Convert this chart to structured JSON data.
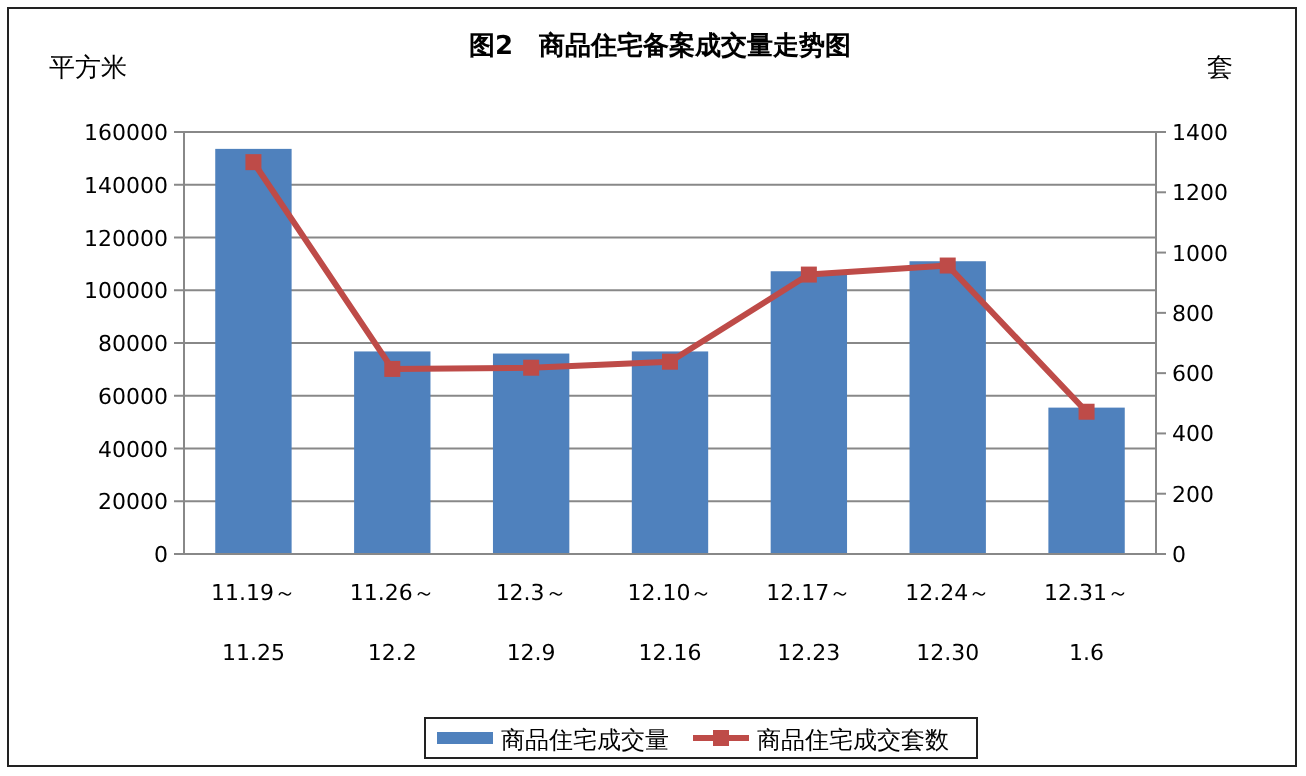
{
  "chart_data": {
    "type": "bar",
    "title": "图2　商品住宅备案成交量走势图",
    "ylabel": "平方米",
    "y2label": "套",
    "categories": [
      "11.19～\n11.25",
      "11.26～\n12.2",
      "12.3～\n12.9",
      "12.10～\n12.16",
      "12.17～\n12.23",
      "12.24～\n12.30",
      "12.31～\n1.6"
    ],
    "series": [
      {
        "name": "商品住宅成交量",
        "color": "#4f81bd",
        "values": [
          153600,
          76800,
          76000,
          76800,
          107200,
          111000,
          55500
        ]
      },
      {
        "name": "商品住宅成交套数",
        "type": "line",
        "axis": "y2",
        "color": "#be4b48",
        "marker": "square",
        "values": [
          1300,
          614,
          618,
          638,
          927,
          957,
          472
        ]
      }
    ],
    "ylim": [
      0,
      160000
    ],
    "yticks": [
      0,
      20000,
      40000,
      60000,
      80000,
      100000,
      120000,
      140000,
      160000
    ],
    "y2lim": [
      0,
      1400
    ],
    "y2ticks": [
      0,
      200,
      400,
      600,
      800,
      1000,
      1200,
      1400
    ],
    "grid": "y",
    "legend": "bottom"
  }
}
